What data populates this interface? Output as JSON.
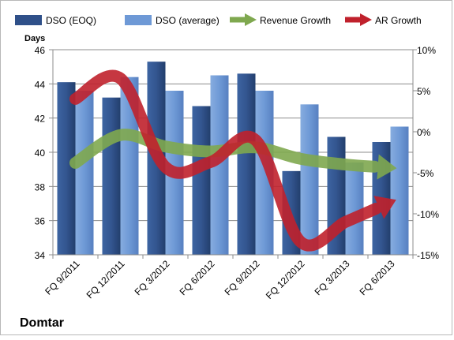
{
  "company": "Domtar",
  "chart_data": {
    "type": "bar",
    "categories": [
      "FQ 9/2011",
      "FQ 12/2011",
      "FQ 3/2012",
      "FQ 6/2012",
      "FQ 9/2012",
      "FQ 12/2012",
      "FQ 3/2013",
      "FQ 6/2013"
    ],
    "left_axis": {
      "label": "Days",
      "range": [
        34,
        46
      ],
      "ticks": [
        "34",
        "36",
        "38",
        "40",
        "42",
        "44",
        "46"
      ]
    },
    "right_axis": {
      "range": [
        -15,
        10
      ],
      "ticks": [
        "-15%",
        "-10%",
        "-5%",
        "0%",
        "5%",
        "10%"
      ]
    },
    "grid": true,
    "legend_position": "top",
    "series": [
      {
        "name": "DSO (EOQ)",
        "type": "bar",
        "axis": "left",
        "color": "#2f5089",
        "values": [
          44.1,
          43.2,
          45.3,
          42.7,
          44.6,
          38.9,
          40.9,
          40.6
        ]
      },
      {
        "name": "DSO (average)",
        "type": "bar",
        "axis": "left",
        "color": "#6e99d6",
        "values": [
          43.6,
          44.4,
          43.6,
          44.5,
          43.6,
          42.8,
          39.4,
          41.5
        ]
      },
      {
        "name": "Revenue Growth",
        "type": "line-arrow",
        "axis": "right",
        "color": "#7fa84f",
        "values": [
          -3.8,
          -0.4,
          -1.8,
          -2.4,
          -1.9,
          -3.3,
          -4.0,
          -4.4
        ]
      },
      {
        "name": "AR Growth",
        "type": "line-arrow",
        "axis": "right",
        "color": "#c0212c",
        "values": [
          4.0,
          6.5,
          -4.3,
          -3.7,
          -1.0,
          -13.4,
          -11.0,
          -8.6
        ]
      }
    ]
  }
}
